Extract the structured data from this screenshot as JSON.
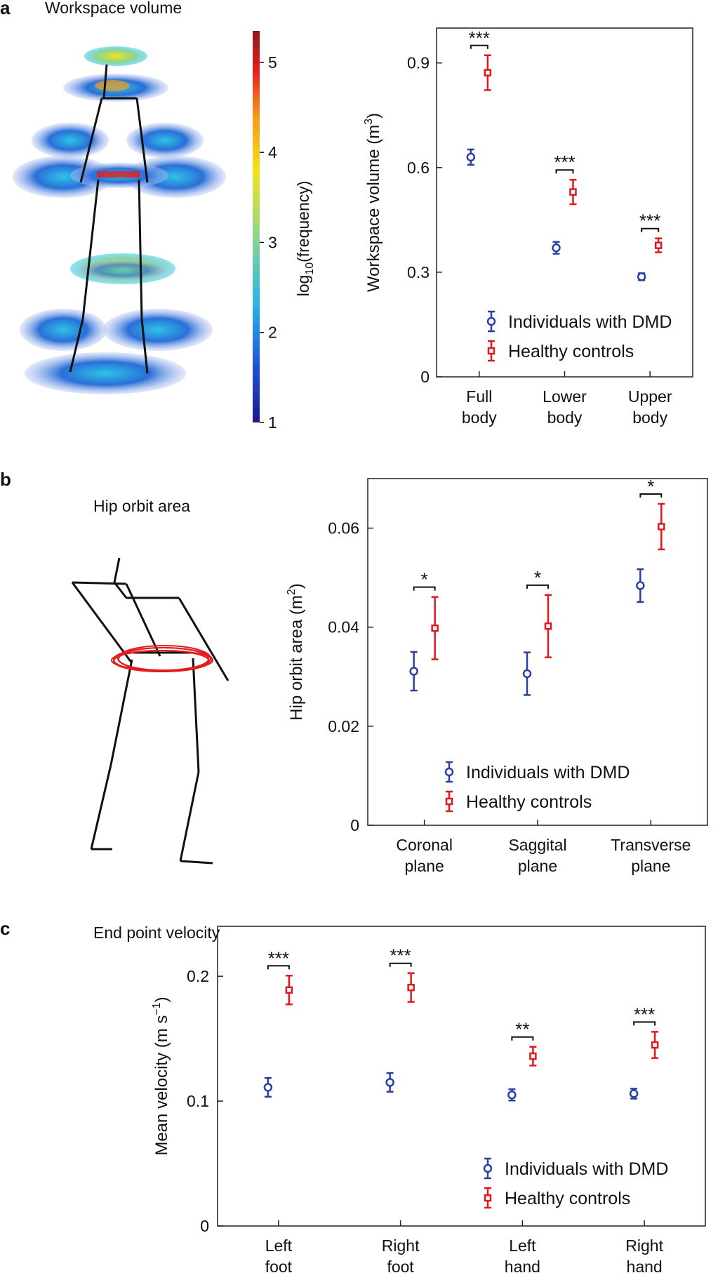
{
  "panels": {
    "a": {
      "letter": "a",
      "title": "Workspace volume"
    },
    "b": {
      "letter": "b",
      "title": "Hip orbit area"
    },
    "c": {
      "letter": "c",
      "title": "End point velocity"
    }
  },
  "colorbar": {
    "label": "log10(frequency)",
    "label_base": "log",
    "label_sub": "10",
    "label_rest": "(frequency)",
    "ticks": [
      "1",
      "2",
      "3",
      "4",
      "5"
    ],
    "colors": [
      "#1a1a8c",
      "#1f4fd8",
      "#28b4e8",
      "#8fd68a",
      "#f2e21e",
      "#f59b1b",
      "#e31d1d",
      "#8c1a1a"
    ]
  },
  "colors": {
    "dmd": "#2a3fa6",
    "control": "#e0191f"
  },
  "chart_data": [
    {
      "type": "scatter",
      "panel": "a",
      "title": "Workspace volume",
      "ylabel": "Workspace volume (m3)",
      "ylabel_main": "Workspace volume (m",
      "ylabel_sup": "3",
      "ylabel_end": ")",
      "ylim": [
        0,
        1.0
      ],
      "yticks": [
        0,
        0.3,
        0.6,
        0.9
      ],
      "ytick_labels": [
        "0",
        "0.3",
        "0.6",
        "0.9"
      ],
      "categories": [
        [
          "Full",
          "body"
        ],
        [
          "Lower",
          "body"
        ],
        [
          "Upper",
          "body"
        ]
      ],
      "series": [
        {
          "name": "Individuals with DMD",
          "marker": "circle",
          "values": [
            0.63,
            0.37,
            0.287
          ],
          "err": [
            0.022,
            0.017,
            0.01
          ]
        },
        {
          "name": "Healthy controls",
          "marker": "square",
          "values": [
            0.872,
            0.53,
            0.377
          ],
          "err": [
            0.05,
            0.035,
            0.02
          ]
        }
      ],
      "significance": [
        "***",
        "***",
        "***"
      ]
    },
    {
      "type": "scatter",
      "panel": "b",
      "title": "Hip orbit area",
      "ylabel": "Hip orbit area (m2)",
      "ylabel_main": "Hip orbit area (m",
      "ylabel_sup": "2",
      "ylabel_end": ")",
      "ylim": [
        0,
        0.07
      ],
      "yticks": [
        0,
        0.02,
        0.04,
        0.06
      ],
      "ytick_labels": [
        "0",
        "0.02",
        "0.04",
        "0.06"
      ],
      "categories": [
        [
          "Coronal",
          "plane"
        ],
        [
          "Saggital",
          "plane"
        ],
        [
          "Transverse",
          "plane"
        ]
      ],
      "series": [
        {
          "name": "Individuals with DMD",
          "marker": "circle",
          "values": [
            0.0311,
            0.0306,
            0.0484
          ],
          "err": [
            0.0039,
            0.0043,
            0.0033
          ]
        },
        {
          "name": "Healthy controls",
          "marker": "square",
          "values": [
            0.0398,
            0.0402,
            0.0603
          ],
          "err": [
            0.0063,
            0.0063,
            0.0046
          ]
        }
      ],
      "significance": [
        "*",
        "*",
        "*"
      ]
    },
    {
      "type": "scatter",
      "panel": "c",
      "title": "End point velocity",
      "ylabel": "Mean velocity (m s-1)",
      "ylabel_main": "Mean velocity (m s",
      "ylabel_sup": "−1",
      "ylabel_end": ")",
      "ylim": [
        0,
        0.24
      ],
      "yticks": [
        0,
        0.1,
        0.2
      ],
      "ytick_labels": [
        "0",
        "0.1",
        "0.2"
      ],
      "categories": [
        [
          "Left",
          "foot"
        ],
        [
          "Right",
          "foot"
        ],
        [
          "Left",
          "hand"
        ],
        [
          "Right",
          "hand"
        ]
      ],
      "series": [
        {
          "name": "Individuals with DMD",
          "marker": "circle",
          "values": [
            0.111,
            0.115,
            0.105,
            0.106
          ],
          "err": [
            0.0075,
            0.0075,
            0.0045,
            0.004
          ]
        },
        {
          "name": "Healthy controls",
          "marker": "square",
          "values": [
            0.189,
            0.191,
            0.136,
            0.145
          ],
          "err": [
            0.0115,
            0.0115,
            0.0075,
            0.0105
          ]
        }
      ],
      "significance": [
        "***",
        "***",
        "**",
        "***"
      ]
    }
  ]
}
